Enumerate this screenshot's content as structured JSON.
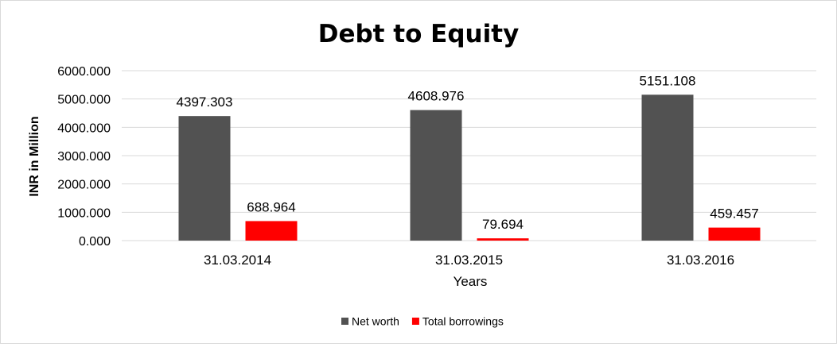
{
  "chart_data": {
    "type": "bar",
    "title": "Debt to Equity",
    "xlabel": "Years",
    "ylabel": "INR in Million",
    "categories": [
      "31.03.2014",
      "31.03.2015",
      "31.03.2016"
    ],
    "series": [
      {
        "name": "Net worth",
        "color": "#525252",
        "values": [
          4397.303,
          4608.976,
          5151.108
        ],
        "labels": [
          "4397.303",
          "4608.976",
          "5151.108"
        ]
      },
      {
        "name": "Total borrowings",
        "color": "#ff0000",
        "values": [
          688.964,
          79.694,
          459.457
        ],
        "labels": [
          "688.964",
          "79.694",
          "459.457"
        ]
      }
    ],
    "ylim": [
      0,
      6000
    ],
    "yticks": [
      0,
      1000,
      2000,
      3000,
      4000,
      5000,
      6000
    ],
    "ytick_labels": [
      "0.000",
      "1000.000",
      "2000.000",
      "3000.000",
      "4000.000",
      "5000.000",
      "6000.000"
    ],
    "grid": true,
    "legend_position": "bottom"
  }
}
